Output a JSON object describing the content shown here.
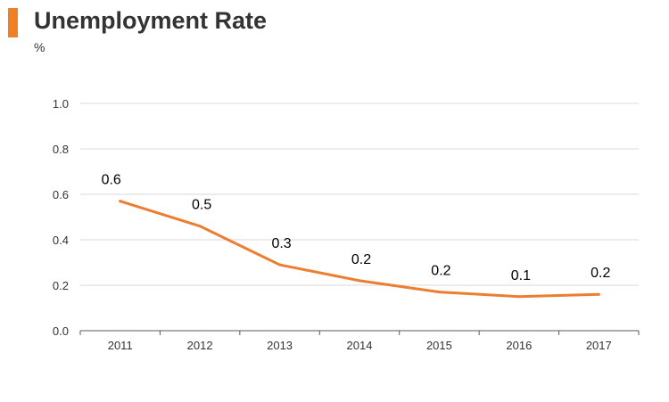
{
  "title": "Unemployment Rate",
  "unit": "%",
  "colors": {
    "accent": "#f08025",
    "line": "#ed7d31",
    "grid": "#d9d9d9",
    "axis": "#595959"
  },
  "chart_data": {
    "type": "line",
    "categories": [
      "2011",
      "2012",
      "2013",
      "2014",
      "2015",
      "2016",
      "2017"
    ],
    "series": [
      {
        "values": [
          0.57,
          0.46,
          0.29,
          0.22,
          0.17,
          0.15,
          0.16
        ],
        "labels": [
          "0.6",
          "0.5",
          "0.3",
          "0.2",
          "0.2",
          "0.1",
          "0.2"
        ]
      }
    ],
    "ylim": [
      0,
      1.0
    ],
    "yticks": [
      "0.0",
      "0.2",
      "0.4",
      "0.6",
      "0.8",
      "1.0"
    ],
    "ytick_values": [
      0,
      0.2,
      0.4,
      0.6,
      0.8,
      1.0
    ],
    "grid": true,
    "legend": "none"
  }
}
